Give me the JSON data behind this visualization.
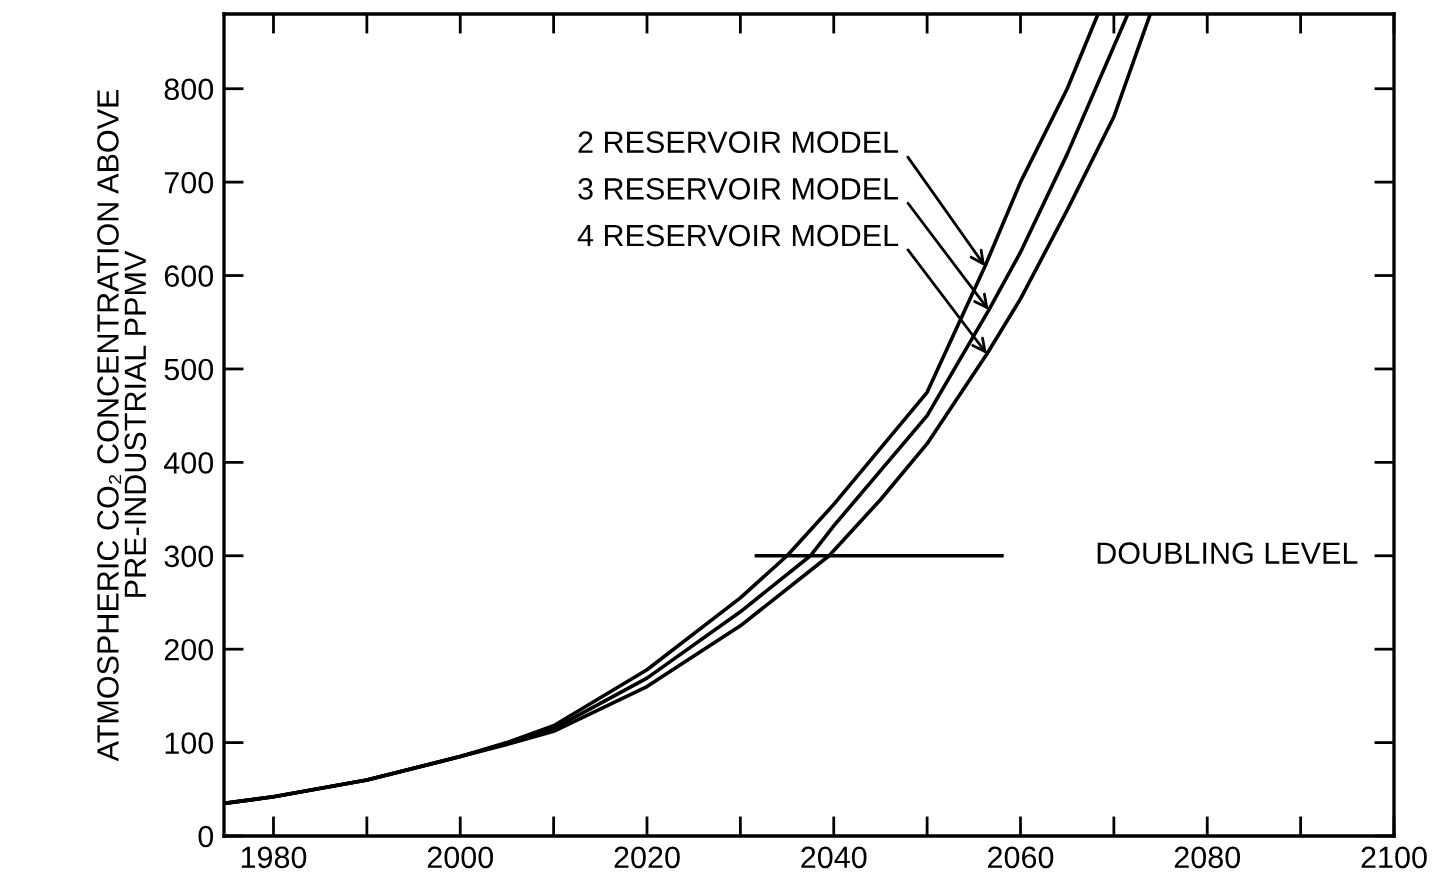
{
  "chart_data": {
    "type": "line",
    "ylabel": "ATMOSPHERIC CO₂ CONCENTRATION ABOVE\nPRE-INDUSTRIAL PPMV",
    "xlim": [
      1974.7,
      2100
    ],
    "ylim": [
      0,
      880
    ],
    "xticks": [
      1980,
      {
        "value": 1990,
        "label": null
      },
      2000,
      {
        "value": 2010,
        "label": null
      },
      2020,
      {
        "value": 2030,
        "label": null
      },
      2040,
      {
        "value": 2050,
        "label": null
      },
      2060,
      {
        "value": 2070,
        "label": null
      },
      2080,
      {
        "value": 2090,
        "label": null
      },
      2100
    ],
    "yticks": [
      0,
      100,
      200,
      300,
      400,
      500,
      600,
      700,
      800
    ],
    "grid": false,
    "marker": "none",
    "line_style": "solid",
    "series": [
      {
        "color": "#000000",
        "x": [
          1974.7,
          1980,
          1990,
          2000,
          2005,
          2010,
          2020,
          2030,
          2035,
          2040,
          2050,
          2056.2,
          2060,
          2065,
          2068.3
        ],
        "values": [
          35,
          42,
          60,
          85,
          100,
          118,
          178,
          255,
          300,
          355,
          475,
          610,
          700,
          800,
          880
        ]
      },
      {
        "color": "#000000",
        "x": [
          1974.7,
          1980,
          1990,
          2000,
          2005,
          2010,
          2020,
          2030,
          2037.5,
          2040,
          2050,
          2056.6,
          2060,
          2065,
          2071.5
        ],
        "values": [
          35,
          42,
          60,
          85,
          99,
          115,
          169,
          240,
          300,
          332,
          450,
          563,
          625,
          730,
          880
        ]
      },
      {
        "color": "#000000",
        "x": [
          1974.7,
          1980,
          1990,
          2000,
          2005,
          2010,
          2020,
          2030,
          2039.5,
          2045,
          2050,
          2056.4,
          2060,
          2065,
          2070,
          2073.9
        ],
        "values": [
          35,
          42,
          60,
          85,
          98,
          112,
          160,
          225,
          300,
          360,
          420,
          516,
          575,
          670,
          770,
          880
        ]
      }
    ],
    "ref_lines": [
      {
        "axis": "y",
        "value": 300,
        "label": "DOUBLING LEVEL",
        "color": "#000000"
      }
    ],
    "annotations": [
      {
        "text": "2 RESERVOIR MODEL",
        "x": 2056.2,
        "y": 610
      },
      {
        "text": "3 RESERVOIR MODEL",
        "x": 2056.6,
        "y": 563
      },
      {
        "text": "4 RESERVOIR MODEL",
        "x": 2056.4,
        "y": 516
      }
    ]
  }
}
